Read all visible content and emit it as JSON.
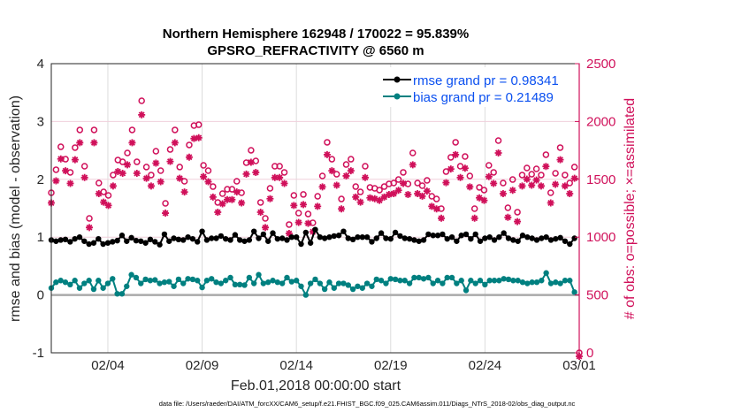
{
  "chart_data": {
    "type": "line",
    "title": [
      "Northern Hemisphere 162948 / 170022 = 95.839%",
      "GPSRO_REFRACTIVITY @ 6560 m"
    ],
    "xlabel": "Feb.01,2018 00:00:00 start",
    "ylabel": "rmse and bias (model - observation)",
    "y2label": "# of obs: o=possible; ×=assimilated",
    "xticks": [
      "02/04",
      "02/09",
      "02/14",
      "02/19",
      "02/24",
      "03/01"
    ],
    "xlim": [
      "02/01",
      "03/01"
    ],
    "ylim": [
      -1,
      4
    ],
    "yticks": [
      "-1",
      "0",
      "1",
      "2",
      "3",
      "4"
    ],
    "y2lim": [
      0,
      2500
    ],
    "y2ticks": [
      "0",
      "500",
      "1000",
      "1500",
      "2000",
      "2500"
    ],
    "grid": true,
    "legend_position": "top-right",
    "footer": "data file: /Users/raeder/DAI/ATM_forcXX/CAM6_setup/f.e21.FHIST_BGC.f09_025.CAM6assim.011/Diags_NTrS_2018-02/obs_diag_output.nc",
    "colors": {
      "rmse": "#000000",
      "bias": "#008080",
      "obs": "#d0105a",
      "legend_text": "#0b50f0"
    },
    "series": [
      {
        "name": "rmse grand pr = 0.98341",
        "values": [
          0.95,
          0.93,
          0.95,
          0.96,
          0.92,
          0.97,
          1.0,
          0.93,
          0.88,
          0.9,
          0.97,
          0.88,
          0.9,
          0.92,
          0.94,
          1.03,
          0.93,
          0.99,
          0.94,
          0.93,
          0.9,
          0.96,
          0.92,
          0.87,
          1.05,
          0.93,
          0.98,
          0.96,
          0.95,
          1.0,
          0.97,
          0.92,
          1.1,
          0.95,
          0.98,
          0.98,
          1.02,
          0.97,
          0.95,
          1.04,
          0.95,
          0.93,
          0.95,
          1.1,
          0.98,
          1.05,
          0.93,
          1.07,
          0.97,
          0.98,
          0.95,
          1.0,
          1.0,
          0.88,
          1.08,
          0.9,
          1.13,
          1.0,
          0.98,
          1.0,
          1.02,
          1.03,
          1.1,
          0.98,
          0.96,
          1.0,
          1.0,
          1.0,
          0.92,
          0.98,
          1.07,
          0.98,
          0.97,
          1.08,
          1.02,
          0.98,
          0.97,
          0.95,
          0.93,
          0.95,
          1.05,
          1.03,
          1.03,
          1.05,
          0.97,
          1.0,
          0.93,
          1.03,
          1.05,
          0.97,
          1.05,
          0.93,
          0.98,
          1.0,
          0.95,
          1.0,
          1.07,
          0.98,
          0.95,
          0.93,
          1.03,
          1.0,
          0.98,
          0.95,
          0.98,
          1.0,
          0.95,
          0.97,
          0.99,
          0.93,
          0.88,
          0.98
        ]
      },
      {
        "name": "bias grand pr = 0.21489",
        "values": [
          0.12,
          0.22,
          0.25,
          0.22,
          0.18,
          0.25,
          0.12,
          0.2,
          0.25,
          0.1,
          0.25,
          0.12,
          0.2,
          0.28,
          0.02,
          0.02,
          0.15,
          0.35,
          0.3,
          0.2,
          0.27,
          0.25,
          0.26,
          0.2,
          0.22,
          0.23,
          0.15,
          0.27,
          0.2,
          0.28,
          0.27,
          0.25,
          0.13,
          0.25,
          0.28,
          0.22,
          0.2,
          0.25,
          0.3,
          0.18,
          0.18,
          0.17,
          0.3,
          0.2,
          0.35,
          0.2,
          0.22,
          0.25,
          0.22,
          0.2,
          0.3,
          0.23,
          0.25,
          0.15,
          0.0,
          0.2,
          0.27,
          0.2,
          0.1,
          0.22,
          0.12,
          0.2,
          0.2,
          0.17,
          0.1,
          0.15,
          0.12,
          0.2,
          0.15,
          0.27,
          0.25,
          0.2,
          0.28,
          0.27,
          0.25,
          0.25,
          0.2,
          0.3,
          0.3,
          0.28,
          0.3,
          0.2,
          0.25,
          0.2,
          0.3,
          0.3,
          0.2,
          0.25,
          0.08,
          0.25,
          0.2,
          0.25,
          0.18,
          0.25,
          0.25,
          0.25,
          0.28,
          0.27,
          0.25,
          0.25,
          0.22,
          0.2,
          0.22,
          0.22,
          0.25,
          0.38,
          0.2,
          0.22,
          0.2,
          0.25,
          0.25,
          0.05
        ]
      },
      {
        "name": "possible",
        "values": [
          1384,
          1583,
          1781,
          1674,
          1560,
          1774,
          1927,
          1613,
          1162,
          1927,
          1468,
          1391,
          1361,
          1537,
          1667,
          1651,
          1728,
          1927,
          1651,
          2179,
          1606,
          1537,
          1743,
          1575,
          1292,
          1758,
          1927,
          1606,
          1483,
          1797,
          1965,
          1972,
          1621,
          1575,
          1437,
          1300,
          1376,
          1414,
          1414,
          1483,
          1384,
          1644,
          1751,
          1659,
          1300,
          1162,
          1422,
          1613,
          1613,
          1560,
          1109,
          1361,
          1208,
          1369,
          1200,
          1124,
          1353,
          1529,
          1820,
          1674,
          1544,
          1330,
          1628,
          1674,
          1437,
          1391,
          1613,
          1430,
          1422,
          1407,
          1437,
          1460,
          1468,
          1498,
          1560,
          1460,
          1728,
          1468,
          1445,
          1491,
          1353,
          1330,
          1246,
          1567,
          1690,
          1820,
          1613,
          1697,
          1529,
          1246,
          1430,
          1407,
          1621,
          1560,
          1835,
          1468,
          1254,
          1498,
          1216,
          1537,
          1598,
          1544,
          1590,
          1537,
          1713,
          1384,
          1552,
          1774,
          1537,
          1468,
          1606,
          0
        ]
      }
    ]
  }
}
